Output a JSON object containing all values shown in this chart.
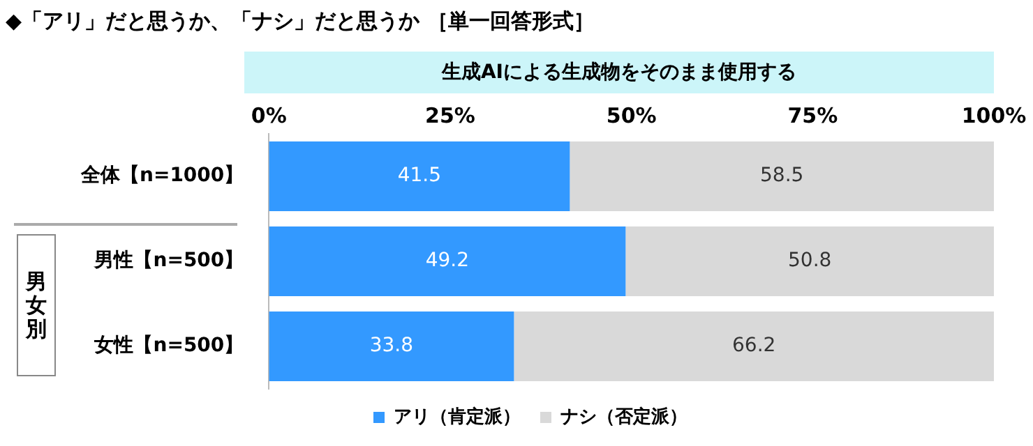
{
  "chart_data": {
    "type": "bar",
    "orientation": "horizontal",
    "stacked": true,
    "title": "◆「アリ」だと思うか、「ナシ」だと思うか ［単一回答形式］",
    "subtitle": "生成AIによる生成物をそのまま使用する",
    "categories": [
      "全体【n=1000】",
      "男性【n=500】",
      "女性【n=500】"
    ],
    "series": [
      {
        "name": "アリ（肯定派）",
        "color": "#3399ff",
        "values": [
          41.5,
          49.2,
          33.8
        ]
      },
      {
        "name": "ナシ（否定派）",
        "color": "#d9d9d9",
        "values": [
          58.5,
          50.8,
          66.2
        ]
      }
    ],
    "xlim": [
      0,
      100
    ],
    "xticks": [
      {
        "value": 0,
        "label": "0%"
      },
      {
        "value": 25,
        "label": "25%"
      },
      {
        "value": 50,
        "label": "50%"
      },
      {
        "value": 75,
        "label": "75%"
      },
      {
        "value": 100,
        "label": "100%"
      }
    ],
    "annotations": [
      "男女別"
    ],
    "data_labels": true,
    "grid": false,
    "legend": "bottom"
  }
}
